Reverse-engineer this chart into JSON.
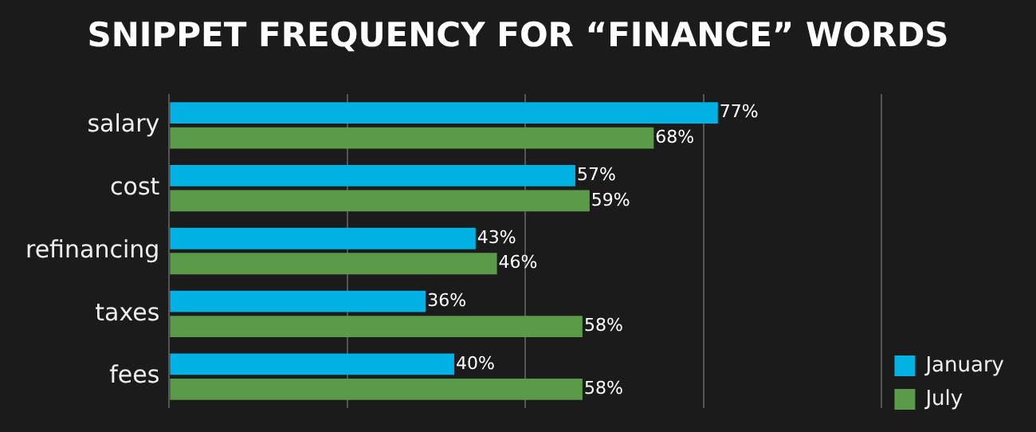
{
  "chart_data": {
    "type": "bar",
    "orientation": "horizontal",
    "title": "SNIPPET FREQUENCY FOR “FINANCE” WORDS",
    "categories": [
      "salary",
      "cost",
      "refinancing",
      "taxes",
      "fees"
    ],
    "series": [
      {
        "name": "January",
        "color": "#00b2e3",
        "values": [
          77,
          57,
          43,
          36,
          40
        ],
        "value_labels": [
          "77%",
          "57%",
          "43%",
          "36%",
          "40%"
        ]
      },
      {
        "name": "July",
        "color": "#5a9a48",
        "values": [
          68,
          59,
          46,
          58,
          58
        ],
        "value_labels": [
          "68%",
          "59%",
          "46%",
          "58%",
          "58%"
        ]
      }
    ],
    "xlim": [
      0,
      100
    ],
    "xticks": [
      {
        "value": 0,
        "label": null
      },
      {
        "value": 25,
        "label": null
      },
      {
        "value": 50,
        "label": null
      },
      {
        "value": 75,
        "label": null
      },
      {
        "value": 100,
        "label": null
      }
    ],
    "tick_labels": "y",
    "grid": "x",
    "legend": "bottom right"
  }
}
